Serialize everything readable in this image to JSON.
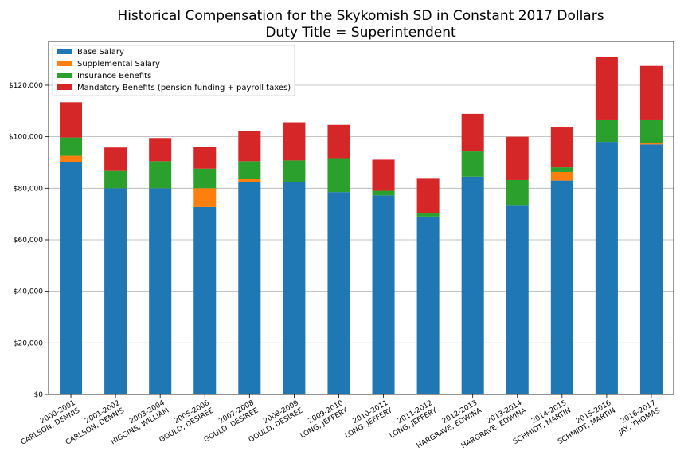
{
  "chart_data": {
    "type": "bar",
    "stacked": true,
    "title": "Historical Compensation for the Skykomish SD in Constant 2017 Dollars",
    "subtitle": "Duty Title = Superintendent",
    "xlabel": "",
    "ylabel": "",
    "ylim": [
      0,
      137000
    ],
    "yticks": [
      0,
      20000,
      40000,
      60000,
      80000,
      100000,
      120000
    ],
    "ytick_labels": [
      "$0",
      "$20,000",
      "$40,000",
      "$60,000",
      "$80,000",
      "$100,000",
      "$120,000"
    ],
    "grid": "horizontal",
    "legend_position": "top-left",
    "categories": [
      [
        "2000-2001",
        "CARLSON, DENNIS"
      ],
      [
        "2001-2002",
        "CARLSON, DENNIS"
      ],
      [
        "2003-2004",
        "HIGGINS, WILLIAM"
      ],
      [
        "2005-2006",
        "GOULD, DESIREE"
      ],
      [
        "2007-2008",
        "GOULD, DESIREE"
      ],
      [
        "2008-2009",
        "GOULD, DESIREE"
      ],
      [
        "2009-2010",
        "LONG, JEFFERY"
      ],
      [
        "2010-2011",
        "LONG, JEFFERY"
      ],
      [
        "2011-2012",
        "LONG, JEFFERY"
      ],
      [
        "2012-2013",
        "HARGRAVE, EDWINA"
      ],
      [
        "2013-2014",
        "HARGRAVE, EDWINA"
      ],
      [
        "2014-2015",
        "SCHMIDT, MARTIN"
      ],
      [
        "2015-2016",
        "SCHMIDT, MARTIN"
      ],
      [
        "2016-2017",
        "JAY, THOMAS"
      ]
    ],
    "series": [
      {
        "name": "Base Salary",
        "color": "#1f77b4",
        "values": [
          90300,
          80000,
          80000,
          72700,
          82500,
          82500,
          78500,
          77200,
          69000,
          84500,
          73500,
          83000,
          98000,
          97000
        ]
      },
      {
        "name": "Supplemental Salary",
        "color": "#ff7f0e",
        "values": [
          2300,
          0,
          0,
          7300,
          1200,
          0,
          0,
          0,
          0,
          0,
          0,
          3300,
          0,
          500
        ]
      },
      {
        "name": "Insurance Benefits",
        "color": "#2ca02c",
        "values": [
          7100,
          7000,
          10500,
          7600,
          6800,
          8300,
          13200,
          1800,
          1500,
          9800,
          9700,
          1800,
          8700,
          9200
        ]
      },
      {
        "name": "Mandatory Benefits (pension funding + payroll taxes)",
        "color": "#d62728",
        "values": [
          13700,
          8800,
          9000,
          8300,
          11800,
          14800,
          12900,
          12100,
          13500,
          14600,
          16800,
          15800,
          24300,
          20800
        ]
      }
    ]
  }
}
